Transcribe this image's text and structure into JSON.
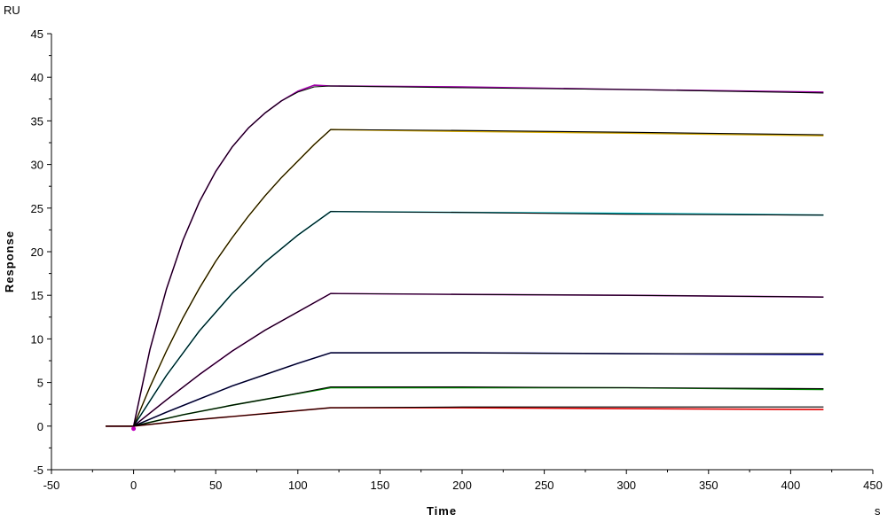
{
  "chart_data": {
    "type": "line",
    "ylabel": "Response",
    "xlabel": "Time",
    "y_unit": "RU",
    "x_unit": "s",
    "xlim": [
      -50,
      450
    ],
    "ylim": [
      -5,
      45
    ],
    "xticks": [
      -50,
      0,
      50,
      100,
      150,
      200,
      250,
      300,
      350,
      400,
      450
    ],
    "yticks": [
      -5,
      0,
      5,
      10,
      15,
      20,
      25,
      30,
      35,
      40,
      45
    ],
    "grid": false,
    "legend": "none",
    "association_end": 120,
    "series": [
      {
        "color": "#a000a8",
        "values": [
          [
            -17,
            0
          ],
          [
            0,
            0
          ],
          [
            10,
            8.8
          ],
          [
            20,
            15.7
          ],
          [
            30,
            21.3
          ],
          [
            40,
            25.7
          ],
          [
            50,
            29.2
          ],
          [
            60,
            32.0
          ],
          [
            70,
            34.2
          ],
          [
            80,
            35.9
          ],
          [
            90,
            37.3
          ],
          [
            100,
            38.4
          ],
          [
            110,
            39.1
          ],
          [
            120,
            39.0
          ],
          [
            200,
            38.9
          ],
          [
            300,
            38.6
          ],
          [
            420,
            38.3
          ]
        ]
      },
      {
        "color": "#d4a800",
        "values": [
          [
            -17,
            0
          ],
          [
            0,
            0
          ],
          [
            10,
            4.5
          ],
          [
            20,
            8.6
          ],
          [
            30,
            12.4
          ],
          [
            40,
            15.8
          ],
          [
            50,
            18.9
          ],
          [
            60,
            21.6
          ],
          [
            70,
            24.1
          ],
          [
            80,
            26.4
          ],
          [
            90,
            28.5
          ],
          [
            100,
            30.4
          ],
          [
            110,
            32.3
          ],
          [
            120,
            34.0
          ],
          [
            200,
            33.8
          ],
          [
            300,
            33.6
          ],
          [
            420,
            33.3
          ]
        ]
      },
      {
        "color": "#00b8c0",
        "values": [
          [
            -17,
            0
          ],
          [
            0,
            0
          ],
          [
            20,
            5.8
          ],
          [
            40,
            10.9
          ],
          [
            60,
            15.2
          ],
          [
            80,
            18.8
          ],
          [
            100,
            21.9
          ],
          [
            120,
            24.6
          ],
          [
            200,
            24.5
          ],
          [
            300,
            24.4
          ],
          [
            420,
            24.2
          ]
        ]
      },
      {
        "color": "#b000b0",
        "values": [
          [
            -17,
            0
          ],
          [
            0,
            0
          ],
          [
            20,
            3.0
          ],
          [
            40,
            5.9
          ],
          [
            60,
            8.6
          ],
          [
            80,
            11.0
          ],
          [
            100,
            13.1
          ],
          [
            120,
            15.2
          ],
          [
            200,
            15.1
          ],
          [
            300,
            15.0
          ],
          [
            420,
            14.8
          ]
        ]
      },
      {
        "color": "#1010b0",
        "values": [
          [
            -17,
            0
          ],
          [
            0,
            0
          ],
          [
            20,
            1.6
          ],
          [
            40,
            3.1
          ],
          [
            60,
            4.6
          ],
          [
            80,
            5.9
          ],
          [
            100,
            7.2
          ],
          [
            120,
            8.4
          ],
          [
            200,
            8.4
          ],
          [
            300,
            8.3
          ],
          [
            420,
            8.2
          ]
        ]
      },
      {
        "color": "#008000",
        "values": [
          [
            -17,
            0
          ],
          [
            0,
            0
          ],
          [
            30,
            1.3
          ],
          [
            60,
            2.4
          ],
          [
            90,
            3.4
          ],
          [
            120,
            4.4
          ],
          [
            200,
            4.4
          ],
          [
            300,
            4.4
          ],
          [
            420,
            4.2
          ]
        ]
      },
      {
        "color": "#e00000",
        "values": [
          [
            -17,
            0
          ],
          [
            0,
            0
          ],
          [
            30,
            0.6
          ],
          [
            60,
            1.1
          ],
          [
            90,
            1.6
          ],
          [
            120,
            2.1
          ],
          [
            200,
            2.1
          ],
          [
            300,
            2.0
          ],
          [
            420,
            1.9
          ]
        ]
      }
    ],
    "fits": {
      "color": "#000000",
      "values": [
        [
          [
            -17,
            0
          ],
          [
            0,
            0
          ],
          [
            10,
            8.8
          ],
          [
            20,
            15.7
          ],
          [
            30,
            21.3
          ],
          [
            40,
            25.7
          ],
          [
            50,
            29.2
          ],
          [
            60,
            32.0
          ],
          [
            70,
            34.2
          ],
          [
            80,
            35.9
          ],
          [
            90,
            37.3
          ],
          [
            100,
            38.3
          ],
          [
            110,
            38.9
          ],
          [
            120,
            39.0
          ],
          [
            200,
            38.8
          ],
          [
            300,
            38.6
          ],
          [
            420,
            38.2
          ]
        ],
        [
          [
            0,
            0
          ],
          [
            10,
            4.5
          ],
          [
            20,
            8.6
          ],
          [
            30,
            12.4
          ],
          [
            40,
            15.8
          ],
          [
            50,
            18.9
          ],
          [
            60,
            21.6
          ],
          [
            70,
            24.1
          ],
          [
            80,
            26.4
          ],
          [
            90,
            28.5
          ],
          [
            100,
            30.4
          ],
          [
            110,
            32.3
          ],
          [
            120,
            34.0
          ],
          [
            200,
            33.9
          ],
          [
            300,
            33.7
          ],
          [
            420,
            33.4
          ]
        ],
        [
          [
            0,
            0
          ],
          [
            20,
            5.8
          ],
          [
            40,
            10.9
          ],
          [
            60,
            15.2
          ],
          [
            80,
            18.8
          ],
          [
            100,
            21.9
          ],
          [
            120,
            24.6
          ],
          [
            200,
            24.5
          ],
          [
            300,
            24.3
          ],
          [
            420,
            24.2
          ]
        ],
        [
          [
            0,
            0
          ],
          [
            20,
            3.0
          ],
          [
            40,
            5.9
          ],
          [
            60,
            8.6
          ],
          [
            80,
            11.0
          ],
          [
            100,
            13.1
          ],
          [
            120,
            15.2
          ],
          [
            200,
            15.1
          ],
          [
            300,
            15.0
          ],
          [
            420,
            14.8
          ]
        ],
        [
          [
            0,
            0
          ],
          [
            20,
            1.6
          ],
          [
            40,
            3.1
          ],
          [
            60,
            4.6
          ],
          [
            80,
            5.9
          ],
          [
            100,
            7.2
          ],
          [
            120,
            8.4
          ],
          [
            200,
            8.4
          ],
          [
            300,
            8.3
          ],
          [
            420,
            8.3
          ]
        ],
        [
          [
            0,
            0
          ],
          [
            30,
            1.3
          ],
          [
            60,
            2.4
          ],
          [
            90,
            3.4
          ],
          [
            120,
            4.5
          ],
          [
            200,
            4.5
          ],
          [
            300,
            4.4
          ],
          [
            420,
            4.3
          ]
        ],
        [
          [
            0,
            0
          ],
          [
            30,
            0.6
          ],
          [
            60,
            1.1
          ],
          [
            90,
            1.6
          ],
          [
            120,
            2.1
          ],
          [
            200,
            2.2
          ],
          [
            300,
            2.2
          ],
          [
            420,
            2.2
          ]
        ]
      ]
    }
  }
}
